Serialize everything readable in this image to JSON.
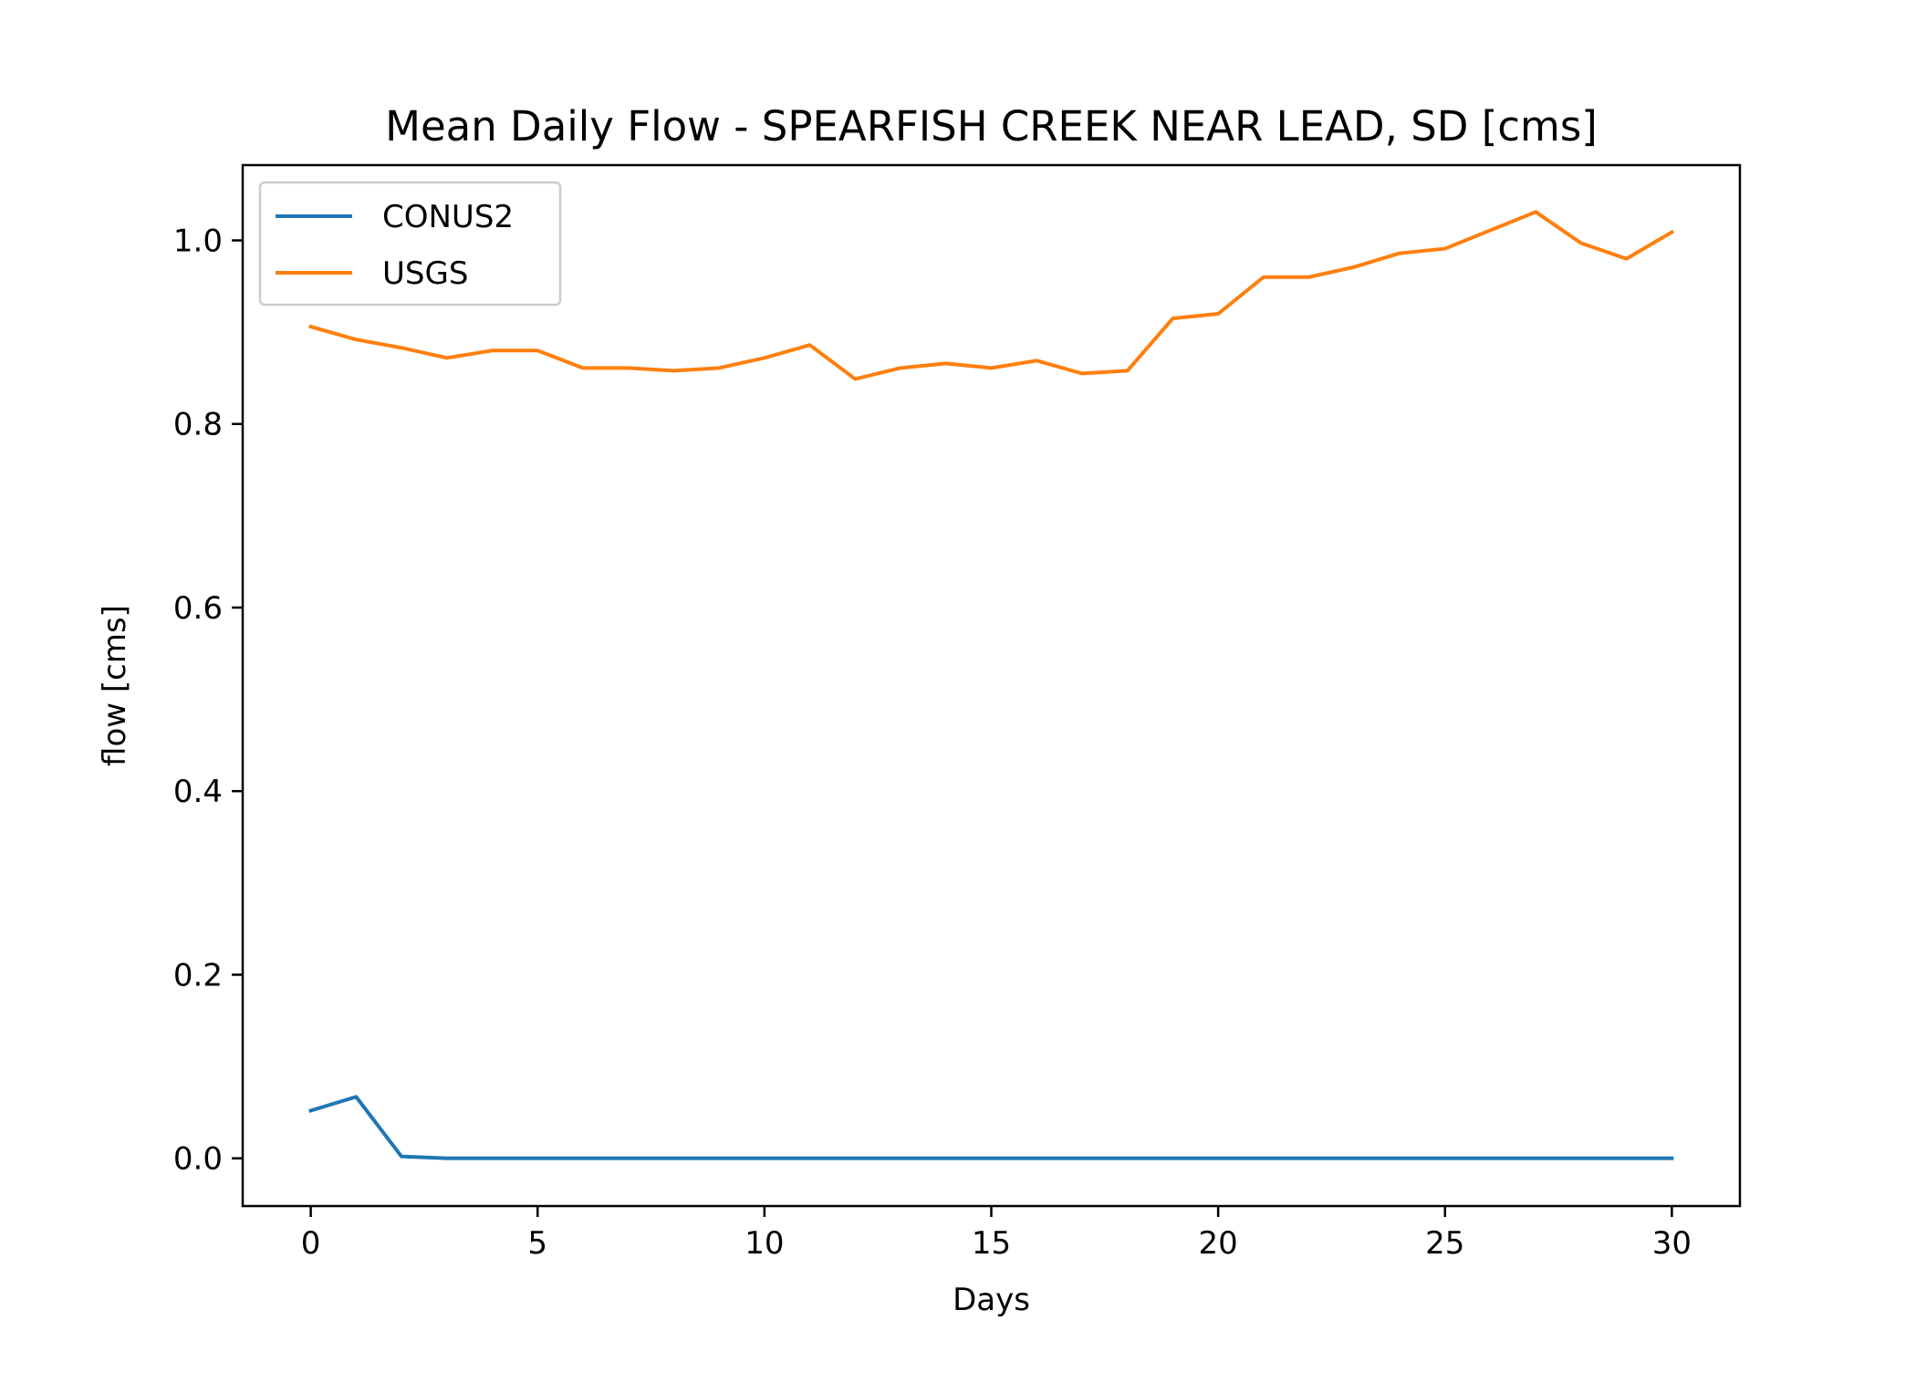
{
  "chart_data": {
    "type": "line",
    "title": "Mean Daily Flow - SPEARFISH CREEK NEAR LEAD, SD [cms]",
    "xlabel": "Days",
    "ylabel": "flow [cms]",
    "xlim": [
      -1.5,
      31.5
    ],
    "ylim": [
      -0.052,
      1.082
    ],
    "xticks": [
      0,
      5,
      10,
      15,
      20,
      25,
      30
    ],
    "xtick_labels": [
      "0",
      "5",
      "10",
      "15",
      "20",
      "25",
      "30"
    ],
    "yticks": [
      0.0,
      0.2,
      0.4,
      0.6,
      0.8,
      1.0
    ],
    "ytick_labels": [
      "0.0",
      "0.2",
      "0.4",
      "0.6",
      "0.8",
      "1.0"
    ],
    "grid": false,
    "legend_position": "upper-left",
    "x": [
      0,
      1,
      2,
      3,
      4,
      5,
      6,
      7,
      8,
      9,
      10,
      11,
      12,
      13,
      14,
      15,
      16,
      17,
      18,
      19,
      20,
      21,
      22,
      23,
      24,
      25,
      26,
      27,
      28,
      29,
      30
    ],
    "series": [
      {
        "name": "CONUS2",
        "color": "#1f77b4",
        "values": [
          0.052,
          0.067,
          0.002,
          0.0,
          0.0,
          0.0,
          0.0,
          0.0,
          0.0,
          0.0,
          0.0,
          0.0,
          0.0,
          0.0,
          0.0,
          0.0,
          0.0,
          0.0,
          0.0,
          0.0,
          0.0,
          0.0,
          0.0,
          0.0,
          0.0,
          0.0,
          0.0,
          0.0,
          0.0,
          0.0,
          0.0
        ]
      },
      {
        "name": "USGS",
        "color": "#ff7f0e",
        "values": [
          0.906,
          0.892,
          0.883,
          0.872,
          0.88,
          0.88,
          0.861,
          0.861,
          0.858,
          0.861,
          0.872,
          0.886,
          0.849,
          0.861,
          0.866,
          0.861,
          0.869,
          0.855,
          0.858,
          0.915,
          0.92,
          0.96,
          0.96,
          0.971,
          0.986,
          0.991,
          1.011,
          1.031,
          0.997,
          0.98,
          1.009
        ]
      }
    ]
  }
}
